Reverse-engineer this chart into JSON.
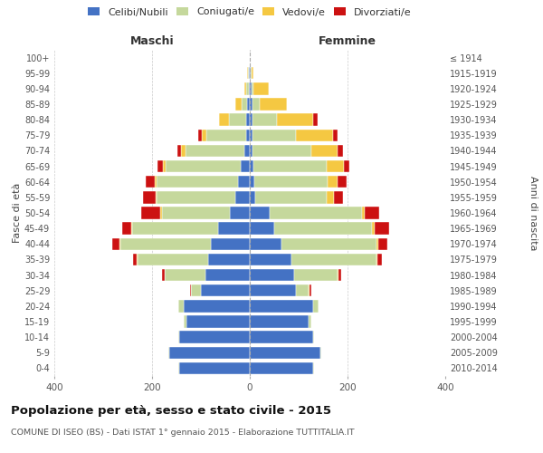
{
  "age_groups": [
    "0-4",
    "5-9",
    "10-14",
    "15-19",
    "20-24",
    "25-29",
    "30-34",
    "35-39",
    "40-44",
    "45-49",
    "50-54",
    "55-59",
    "60-64",
    "65-69",
    "70-74",
    "75-79",
    "80-84",
    "85-89",
    "90-94",
    "95-99",
    "100+"
  ],
  "birth_years": [
    "2010-2014",
    "2005-2009",
    "2000-2004",
    "1995-1999",
    "1990-1994",
    "1985-1989",
    "1980-1984",
    "1975-1979",
    "1970-1974",
    "1965-1969",
    "1960-1964",
    "1955-1959",
    "1950-1954",
    "1945-1949",
    "1940-1944",
    "1935-1939",
    "1930-1934",
    "1925-1929",
    "1920-1924",
    "1915-1919",
    "≤ 1914"
  ],
  "maschi": {
    "celibi": [
      145,
      165,
      145,
      130,
      135,
      100,
      90,
      85,
      80,
      65,
      40,
      30,
      25,
      18,
      12,
      8,
      8,
      5,
      2,
      1,
      0
    ],
    "coniugati": [
      2,
      2,
      2,
      5,
      12,
      20,
      85,
      145,
      185,
      175,
      140,
      160,
      165,
      155,
      120,
      80,
      35,
      12,
      5,
      2,
      0
    ],
    "vedovi": [
      0,
      0,
      0,
      0,
      0,
      0,
      0,
      1,
      1,
      2,
      3,
      3,
      5,
      5,
      8,
      10,
      20,
      12,
      5,
      2,
      0
    ],
    "divorziati": [
      0,
      0,
      0,
      0,
      0,
      2,
      5,
      8,
      15,
      20,
      40,
      25,
      18,
      10,
      8,
      8,
      0,
      0,
      0,
      0,
      0
    ]
  },
  "femmine": {
    "nubili": [
      130,
      145,
      130,
      120,
      130,
      95,
      90,
      85,
      65,
      50,
      40,
      12,
      10,
      8,
      5,
      5,
      5,
      5,
      3,
      1,
      0
    ],
    "coniugate": [
      2,
      2,
      2,
      5,
      10,
      25,
      90,
      175,
      195,
      200,
      190,
      145,
      150,
      150,
      120,
      90,
      50,
      15,
      5,
      2,
      0
    ],
    "vedove": [
      0,
      0,
      0,
      0,
      0,
      2,
      2,
      2,
      3,
      5,
      5,
      15,
      20,
      35,
      55,
      75,
      75,
      55,
      30,
      5,
      0
    ],
    "divorziate": [
      0,
      0,
      0,
      0,
      0,
      3,
      5,
      8,
      18,
      30,
      30,
      18,
      18,
      10,
      10,
      10,
      8,
      0,
      0,
      0,
      0
    ]
  },
  "colors": {
    "celibi": "#4472C4",
    "coniugati": "#C5D89C",
    "vedovi": "#F5C842",
    "divorziati": "#CC1111"
  },
  "title_main": "Popolazione per età, sesso e stato civile - 2015",
  "title_sub": "COMUNE DI ISEO (BS) - Dati ISTAT 1° gennaio 2015 - Elaborazione TUTTITALIA.IT",
  "ylabel_left": "Fasce di età",
  "ylabel_right": "Anni di nascita",
  "xlabel_left": "Maschi",
  "xlabel_right": "Femmine",
  "legend_labels": [
    "Celibi/Nubili",
    "Coniugati/e",
    "Vedovi/e",
    "Divorziati/e"
  ],
  "xlim": 400,
  "background_color": "#ffffff",
  "grid_color": "#cccccc"
}
